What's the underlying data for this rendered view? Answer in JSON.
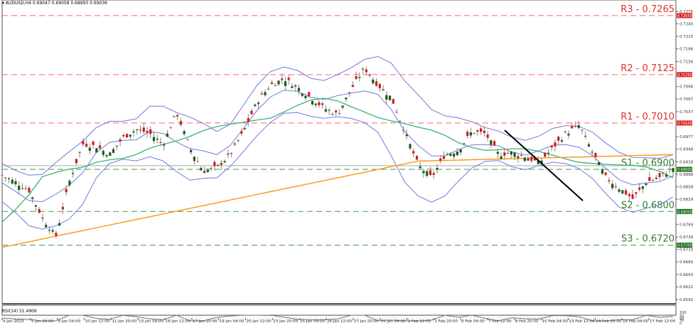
{
  "header": {
    "symbol_line": "AUDUSD,H4  0.69047 0.69058 0.68993 0.69036",
    "symbol": "AUDUSD",
    "timeframe": "H4",
    "open": "0.69047",
    "high": "0.69058",
    "low": "0.68993",
    "close": "0.69036"
  },
  "rsi_panel": {
    "label": "RSI(14) 51.4906",
    "levels": [
      "100",
      "70",
      "50",
      "30",
      "0"
    ]
  },
  "colors": {
    "bull": "#1a5c1a",
    "bear": "#d41a1a",
    "wick": "#888888",
    "bollinger": "#7777dd",
    "ma_fast": "#3cb371",
    "ma_slow": "#ff9a1f",
    "resistance": "#ff6666",
    "support": "#449944",
    "trendline": "#000000",
    "rsi_line": "#777777",
    "current_price_line": "#aaaaaa"
  },
  "chart_data": {
    "type": "candlestick",
    "title": "AUDUSD,H4",
    "xlabel": "",
    "ylabel": "",
    "ylim": [
      0.6591,
      0.7275
    ],
    "grid": false,
    "y_ticks": [
      "0.72750",
      "0.72455",
      "0.72155",
      "0.71860",
      "0.71560",
      "0.70965",
      "0.70670",
      "0.70370",
      "0.69775",
      "0.69480",
      "0.69180",
      "0.68885",
      "0.68585",
      "0.68290",
      "0.67695",
      "0.67395",
      "0.67100",
      "0.66805",
      "0.66505",
      "0.66210",
      "0.65910"
    ],
    "x_ticks": [
      "4 Jan 2023",
      "5 Jan 20:00",
      "9 Jan 04:00",
      "10 Jan 12:00",
      "11 Jan 20:00",
      "13 Jan 04:00",
      "16 Jan 12:00",
      "17 Jan 20:00",
      "19 Jan 04:00",
      "20 Jan 12:00",
      "23 Jan 20:00",
      "25 Jan 04:00",
      "26 Jan 12:00",
      "27 Jan 20:00",
      "31 Jan 04:00",
      "1 Feb 12:00",
      "2 Feb 20:00",
      "6 Feb 04:00",
      "7 Feb 12:00",
      "8 Feb 20:00",
      "10 Feb 04:00",
      "13 Feb 12:00",
      "14 Feb 20:00",
      "16 Feb 04:00",
      "17 Feb 12:00"
    ],
    "levels": [
      {
        "name": "R3",
        "label": "R3 - 0.7265",
        "value": 0.7265,
        "tag": "0.72650",
        "kind": "resistance"
      },
      {
        "name": "R2",
        "label": "R2 - 0.7125",
        "value": 0.7125,
        "tag": "0.71250",
        "kind": "resistance"
      },
      {
        "name": "R1",
        "label": "R1 - 0.7010",
        "value": 0.701,
        "tag": "0.70100",
        "kind": "resistance"
      },
      {
        "name": "S1",
        "label": "S1 - 0.6900",
        "value": 0.69,
        "tag": "0.69000",
        "kind": "support"
      },
      {
        "name": "S2",
        "label": "S2 - 0.6800",
        "value": 0.68,
        "tag": "0.68000",
        "kind": "support"
      },
      {
        "name": "S3",
        "label": "S3 - 0.6720",
        "value": 0.672,
        "tag": "0.67200",
        "kind": "support"
      }
    ],
    "current_price": 0.69036,
    "series": [
      {
        "name": "price_close_approx",
        "x_pct": [
          0,
          2,
          4,
          6,
          8,
          10,
          12,
          14,
          16,
          18,
          20,
          22,
          24,
          26,
          28,
          30,
          32,
          34,
          36,
          38,
          40,
          42,
          44,
          46,
          48,
          50,
          52,
          54,
          56,
          58,
          60,
          62,
          64,
          66,
          68,
          70,
          72,
          74,
          76,
          78,
          80,
          82,
          84,
          86,
          88,
          90,
          92,
          94,
          96,
          98,
          100
        ],
        "values": [
          0.6885,
          0.687,
          0.685,
          0.6785,
          0.674,
          0.687,
          0.696,
          0.6955,
          0.6935,
          0.6975,
          0.6995,
          0.6985,
          0.696,
          0.7035,
          0.695,
          0.6895,
          0.6905,
          0.6935,
          0.699,
          0.706,
          0.71,
          0.7115,
          0.7095,
          0.707,
          0.7045,
          0.703,
          0.709,
          0.714,
          0.71,
          0.707,
          0.699,
          0.691,
          0.688,
          0.6935,
          0.6945,
          0.699,
          0.6985,
          0.6935,
          0.694,
          0.693,
          0.6915,
          0.695,
          0.6985,
          0.7005,
          0.694,
          0.688,
          0.6855,
          0.683,
          0.687,
          0.688,
          0.6904
        ]
      },
      {
        "name": "MA_slow_orange",
        "values_start_end": [
          0.6715,
          0.6935
        ]
      },
      {
        "name": "MA_fast_green",
        "values_start_end": [
          0.6775,
          0.694
        ]
      },
      {
        "name": "RSI(14)",
        "last": 51.4906,
        "range": [
          0,
          100
        ]
      }
    ],
    "annotations": [
      "Downtrend line from 13 Feb high (~0.7030) to ~0.6800 near 17 Feb 12:00"
    ]
  }
}
